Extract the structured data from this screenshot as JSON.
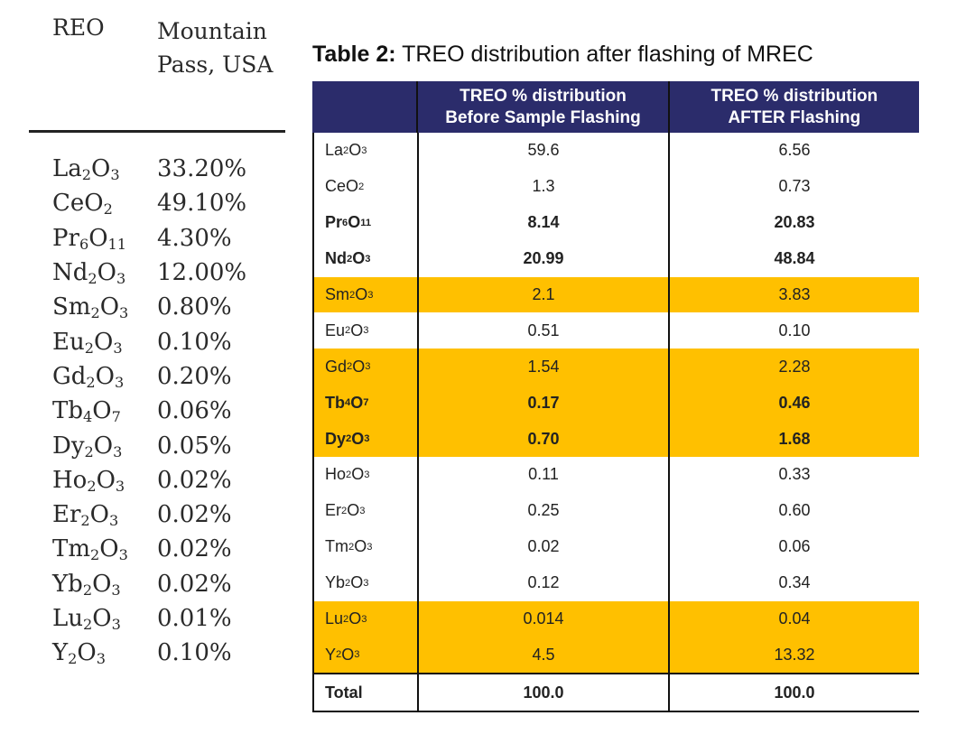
{
  "left_table": {
    "header_reo": "REO",
    "header_location_line1": "Mountain",
    "header_location_line2": "Pass, USA",
    "rows": [
      {
        "compound": "La2O3",
        "value": "33.20%"
      },
      {
        "compound": "CeO2",
        "value": "49.10%"
      },
      {
        "compound": "Pr6O11",
        "value": "4.30%"
      },
      {
        "compound": "Nd2O3",
        "value": "12.00%"
      },
      {
        "compound": "Sm2O3",
        "value": "0.80%"
      },
      {
        "compound": "Eu2O3",
        "value": "0.10%"
      },
      {
        "compound": "Gd2O3",
        "value": "0.20%"
      },
      {
        "compound": "Tb4O7",
        "value": "0.06%"
      },
      {
        "compound": "Dy2O3",
        "value": "0.05%"
      },
      {
        "compound": "Ho2O3",
        "value": "0.02%"
      },
      {
        "compound": "Er2O3",
        "value": "0.02%"
      },
      {
        "compound": "Tm2O3",
        "value": "0.02%"
      },
      {
        "compound": "Yb2O3",
        "value": "0.02%"
      },
      {
        "compound": "Lu2O3",
        "value": "0.01%"
      },
      {
        "compound": "Y2O3",
        "value": "0.10%"
      }
    ]
  },
  "table2": {
    "caption_label": "Table 2:",
    "caption_text": " TREO distribution after flashing of MREC",
    "header_col0": "",
    "header_col1_line1": "TREO % distribution",
    "header_col1_line2": "Before Sample Flashing",
    "header_col2_line1": "TREO % distribution",
    "header_col2_line2": "AFTER Flashing",
    "header_color": "#2b2c6b",
    "highlight_color": "#ffc000",
    "rows": [
      {
        "compound": "La2O3",
        "before": "59.6",
        "after": "6.56",
        "bold": false,
        "highlight": false
      },
      {
        "compound": "CeO2",
        "before": "1.3",
        "after": "0.73",
        "bold": false,
        "highlight": false
      },
      {
        "compound": "Pr6O11",
        "before": "8.14",
        "after": "20.83",
        "bold": true,
        "highlight": false
      },
      {
        "compound": "Nd2O3",
        "before": "20.99",
        "after": "48.84",
        "bold": true,
        "highlight": false
      },
      {
        "compound": "Sm2O3",
        "before": "2.1",
        "after": "3.83",
        "bold": false,
        "highlight": true
      },
      {
        "compound": "Eu2O3",
        "before": "0.51",
        "after": "0.10",
        "bold": false,
        "highlight": false
      },
      {
        "compound": "Gd2O3",
        "before": "1.54",
        "after": "2.28",
        "bold": false,
        "highlight": true
      },
      {
        "compound": "Tb4O7",
        "before": "0.17",
        "after": "0.46",
        "bold": true,
        "highlight": true
      },
      {
        "compound": "Dy2O3",
        "before": "0.70",
        "after": "1.68",
        "bold": true,
        "highlight": true
      },
      {
        "compound": "Ho2O3",
        "before": "0.11",
        "after": "0.33",
        "bold": false,
        "highlight": false
      },
      {
        "compound": "Er2O3",
        "before": "0.25",
        "after": "0.60",
        "bold": false,
        "highlight": false
      },
      {
        "compound": "Tm2O3",
        "before": "0.02",
        "after": "0.06",
        "bold": false,
        "highlight": false
      },
      {
        "compound": "Yb2O3",
        "before": "0.12",
        "after": "0.34",
        "bold": false,
        "highlight": false
      },
      {
        "compound": "Lu2O3",
        "before": "0.014",
        "after": "0.04",
        "bold": false,
        "highlight": true
      },
      {
        "compound": "Y2O3",
        "before": "4.5",
        "after": "13.32",
        "bold": false,
        "highlight": true
      }
    ],
    "total_label": "Total",
    "total_before": "100.0",
    "total_after": "100.0"
  }
}
